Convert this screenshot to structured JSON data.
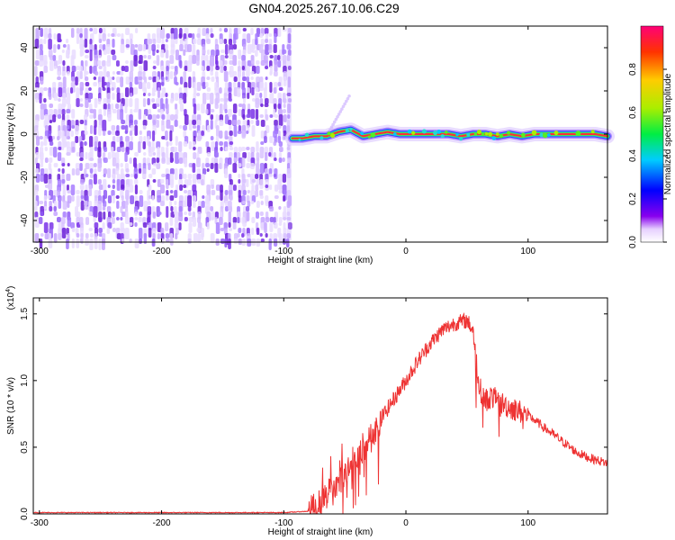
{
  "title": "GN04.2025.267.10.06.C29",
  "chart_data": [
    {
      "type": "heatmap",
      "xlabel": "Height of straight line (km)",
      "ylabel": "Frequency (Hz)",
      "xlim": [
        -305,
        165
      ],
      "ylim": [
        -50,
        50
      ],
      "xticks": [
        -300,
        -200,
        -100,
        0,
        100
      ],
      "yticks": [
        -40,
        -20,
        0,
        20,
        40
      ],
      "noise_region_x": [
        -305,
        -93
      ],
      "signal_track": {
        "x": [
          -93,
          -85,
          -75,
          -65,
          -55,
          -45,
          -35,
          -25,
          -15,
          -5,
          5,
          15,
          25,
          35,
          45,
          55,
          65,
          75,
          85,
          95,
          105,
          115,
          125,
          135,
          145,
          155,
          165
        ],
        "y": [
          -2,
          -2,
          -1,
          -1,
          1,
          2,
          -1,
          0,
          1,
          0,
          0,
          0,
          0,
          0,
          -1,
          0,
          0,
          -1,
          0,
          -1,
          0,
          0,
          0,
          0,
          0,
          0,
          -1
        ]
      },
      "colorbar": {
        "label": "Normalized spectral amplitude",
        "range": [
          0.0,
          1.0
        ],
        "ticks": [
          "0.0",
          "0.2",
          "0.4",
          "0.6",
          "0.8"
        ]
      }
    },
    {
      "type": "line",
      "xlabel": "Height of straight line (km)",
      "ylabel": "SNR (10 * v/v)",
      "y_multiplier": "(x10",
      "y_multiplier_exp": "4",
      "y_multiplier_close": ")",
      "xlim": [
        -305,
        165
      ],
      "ylim": [
        0,
        1.62
      ],
      "xticks": [
        -300,
        -200,
        -100,
        0,
        100
      ],
      "yticks": [
        "0.0",
        "0.5",
        "1.0",
        "1.5"
      ],
      "color": "#ee3333",
      "series": [
        {
          "x": [
            -305,
            -200,
            -100,
            -80,
            -70,
            -60,
            -50,
            -40,
            -30,
            -20,
            -10,
            0,
            10,
            20,
            30,
            40,
            50,
            55,
            60,
            65,
            70,
            80,
            90,
            100,
            110,
            120,
            130,
            140,
            150,
            165
          ],
          "values": [
            0.01,
            0.01,
            0.01,
            0.02,
            0.08,
            0.2,
            0.3,
            0.42,
            0.55,
            0.72,
            0.86,
            1.0,
            1.15,
            1.28,
            1.38,
            1.43,
            1.45,
            1.38,
            0.95,
            0.85,
            0.88,
            0.82,
            0.78,
            0.74,
            0.67,
            0.6,
            0.53,
            0.46,
            0.42,
            0.38
          ]
        }
      ]
    }
  ]
}
